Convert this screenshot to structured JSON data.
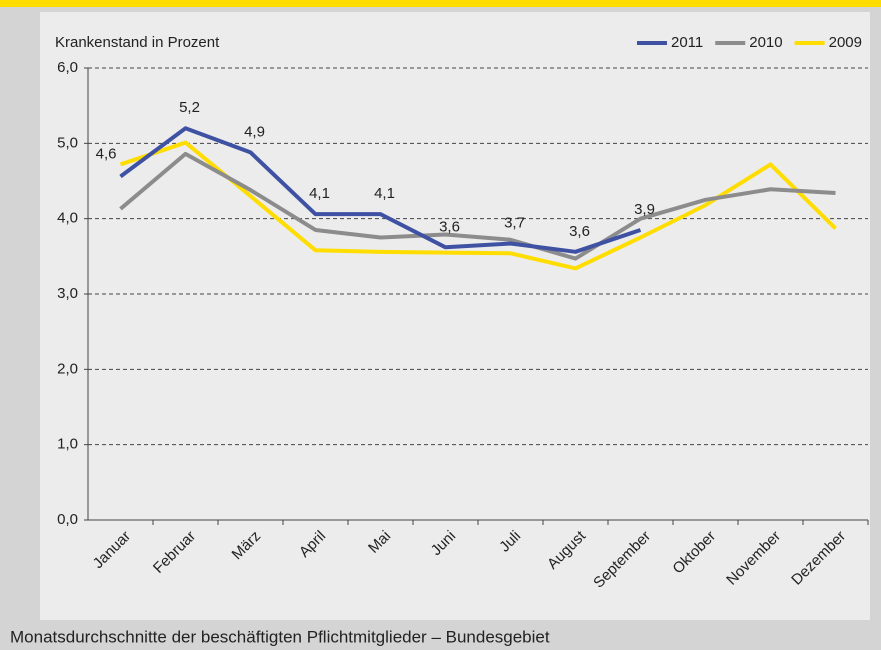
{
  "chart_data": {
    "type": "line",
    "y_label": "Krankenstand in Prozent",
    "caption": "Monatsdurchschnitte der beschäftigten Pflichtmitglieder – Bundesgebiet",
    "categories": [
      "Januar",
      "Februar",
      "März",
      "April",
      "Mai",
      "Juni",
      "Juli",
      "August",
      "September",
      "Oktober",
      "November",
      "Dezember"
    ],
    "series": [
      {
        "name": "2011",
        "color": "#3f51a3",
        "values": [
          4.56,
          5.2,
          4.88,
          4.06,
          4.06,
          3.62,
          3.67,
          3.56,
          3.85,
          null,
          null,
          null
        ],
        "value_labels": [
          "4,6",
          "5,2",
          "4,9",
          "4,1",
          "4,1",
          "3,6",
          "3,7",
          "3,6",
          "3,9",
          null,
          null,
          null
        ]
      },
      {
        "name": "2010",
        "color": "#8c8c8c",
        "values": [
          4.13,
          4.86,
          4.38,
          3.85,
          3.75,
          3.79,
          3.72,
          3.47,
          4.0,
          4.25,
          4.39,
          4.34
        ]
      },
      {
        "name": "2009",
        "color": "#ffdd00",
        "values": [
          4.72,
          5.01,
          4.3,
          3.58,
          3.56,
          3.55,
          3.54,
          3.34,
          3.75,
          4.18,
          4.72,
          3.87
        ]
      }
    ],
    "ylim": [
      0,
      6
    ],
    "yticks": [
      {
        "value": 0,
        "label": "0,0"
      },
      {
        "value": 1,
        "label": "1,0"
      },
      {
        "value": 2,
        "label": "2,0"
      },
      {
        "value": 3,
        "label": "3,0"
      },
      {
        "value": 4,
        "label": "4,0"
      },
      {
        "value": 5,
        "label": "5,0"
      },
      {
        "value": 6,
        "label": "6,0"
      }
    ],
    "grid": true,
    "legend": "top-right"
  }
}
